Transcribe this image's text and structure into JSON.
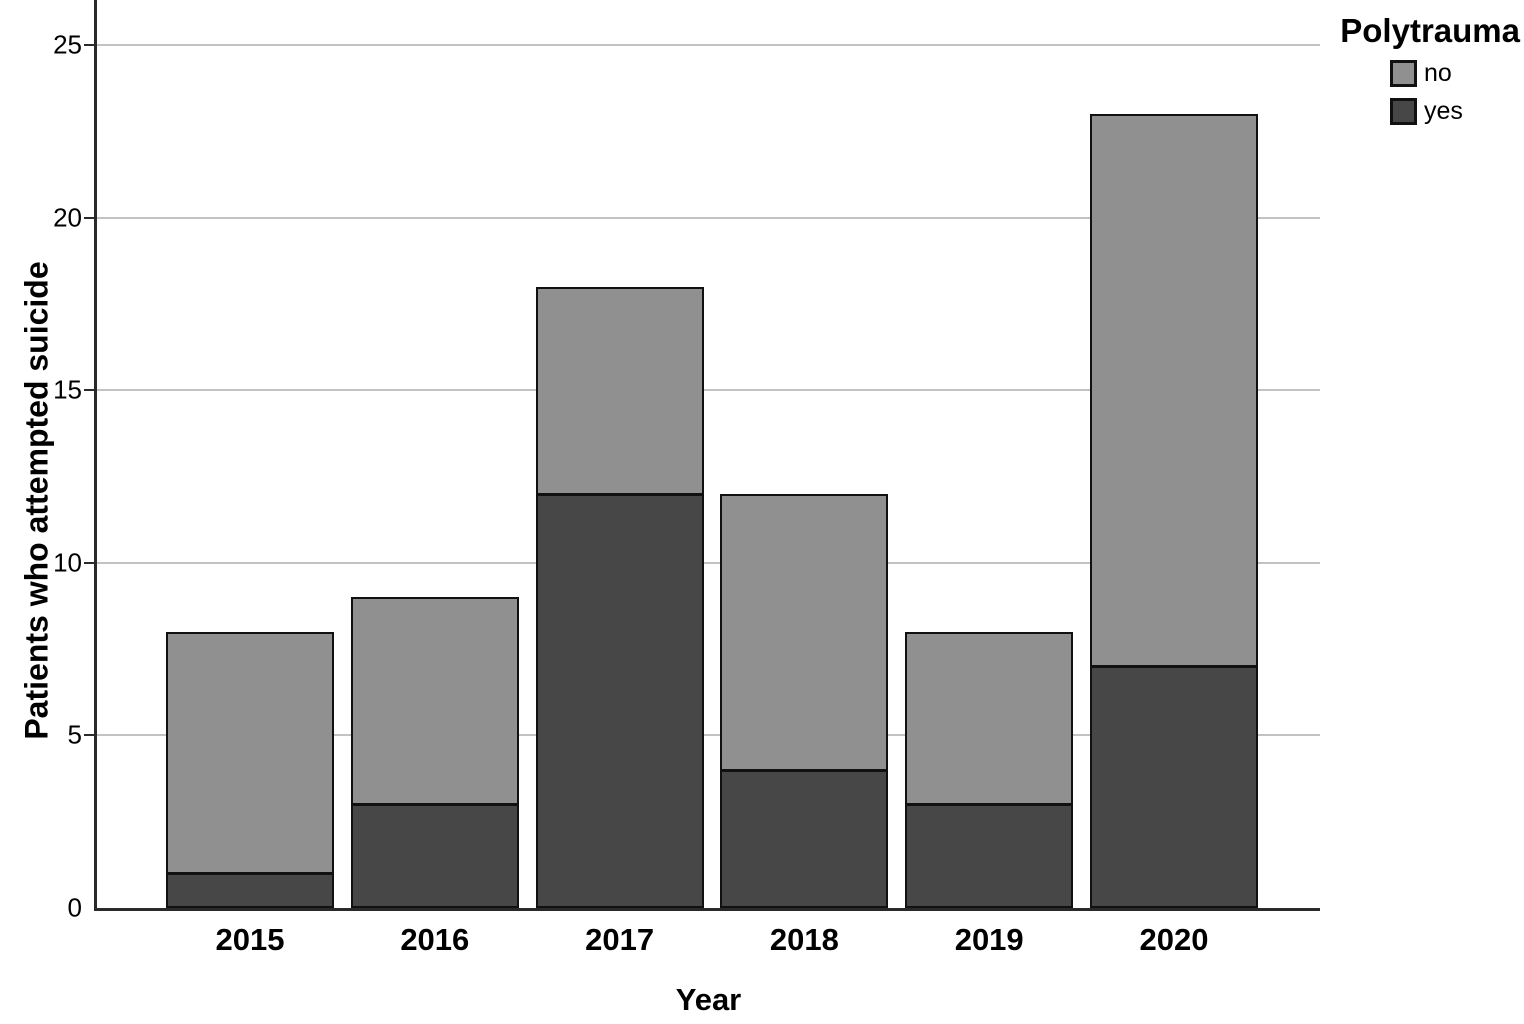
{
  "chart_data": {
    "type": "bar",
    "stacked": true,
    "title": "",
    "xlabel": "Year",
    "ylabel": "Patients who attempted suicide",
    "categories": [
      "2015",
      "2016",
      "2017",
      "2018",
      "2019",
      "2020"
    ],
    "series": [
      {
        "name": "no",
        "color": "#909090",
        "values": [
          7,
          6,
          6,
          8,
          5,
          16
        ]
      },
      {
        "name": "yes",
        "color": "#474747",
        "values": [
          1,
          3,
          12,
          4,
          3,
          7
        ]
      }
    ],
    "totals": [
      8,
      9,
      18,
      12,
      8,
      23
    ],
    "yticks": [
      0,
      5,
      10,
      15,
      20,
      25
    ],
    "ylim": [
      0,
      26.3
    ],
    "grid": "horizontal",
    "gridline_color": "#c2c2c2",
    "axis_color": "#2a2a2a",
    "bar_border_color": "#111111",
    "legend": {
      "title": "Polytrauma",
      "position": "top-right",
      "items": [
        {
          "label": "no",
          "color": "#909090"
        },
        {
          "label": "yes",
          "color": "#474747"
        }
      ]
    }
  }
}
